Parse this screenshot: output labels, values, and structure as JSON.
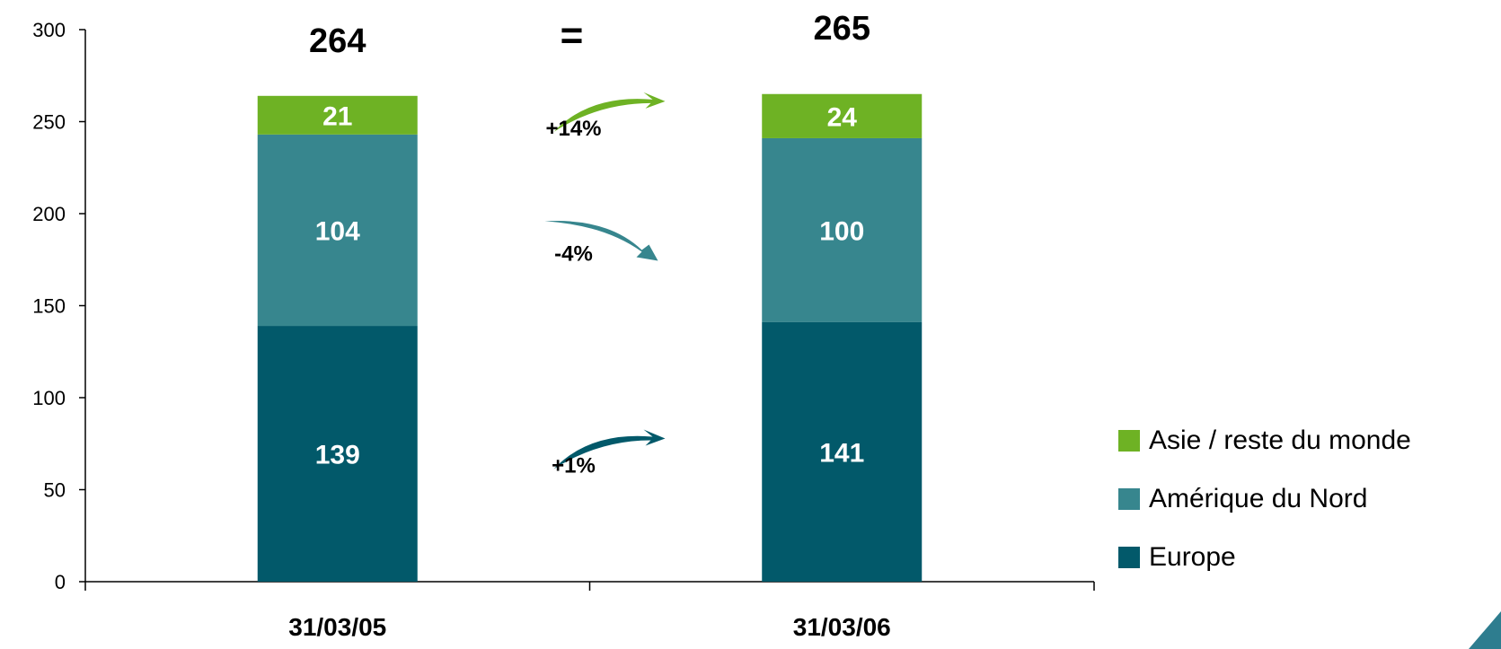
{
  "chart_data": {
    "type": "bar",
    "stacked": true,
    "categories": [
      "31/03/05",
      "31/03/06"
    ],
    "series": [
      {
        "name": "Europe",
        "values": [
          139,
          141
        ],
        "color": "#02596a"
      },
      {
        "name": "Amérique du Nord",
        "values": [
          104,
          100
        ],
        "color": "#37868e"
      },
      {
        "name": "Asie / reste du monde",
        "values": [
          21,
          24
        ],
        "color": "#6eb224"
      }
    ],
    "totals": [
      "264",
      "265"
    ],
    "total_change": "=",
    "changes": [
      {
        "series": "Asie / reste du monde",
        "label": "+14%",
        "color": "#6eb224",
        "direction": "up"
      },
      {
        "series": "Amérique du Nord",
        "label": "-4%",
        "color": "#37868e",
        "direction": "down"
      },
      {
        "series": "Europe",
        "label": "+1%",
        "color": "#02596a",
        "direction": "up"
      }
    ],
    "ylim": [
      0,
      300
    ],
    "yticks": [
      0,
      50,
      100,
      150,
      200,
      250,
      300
    ],
    "grid": false,
    "legend_position": "right"
  }
}
